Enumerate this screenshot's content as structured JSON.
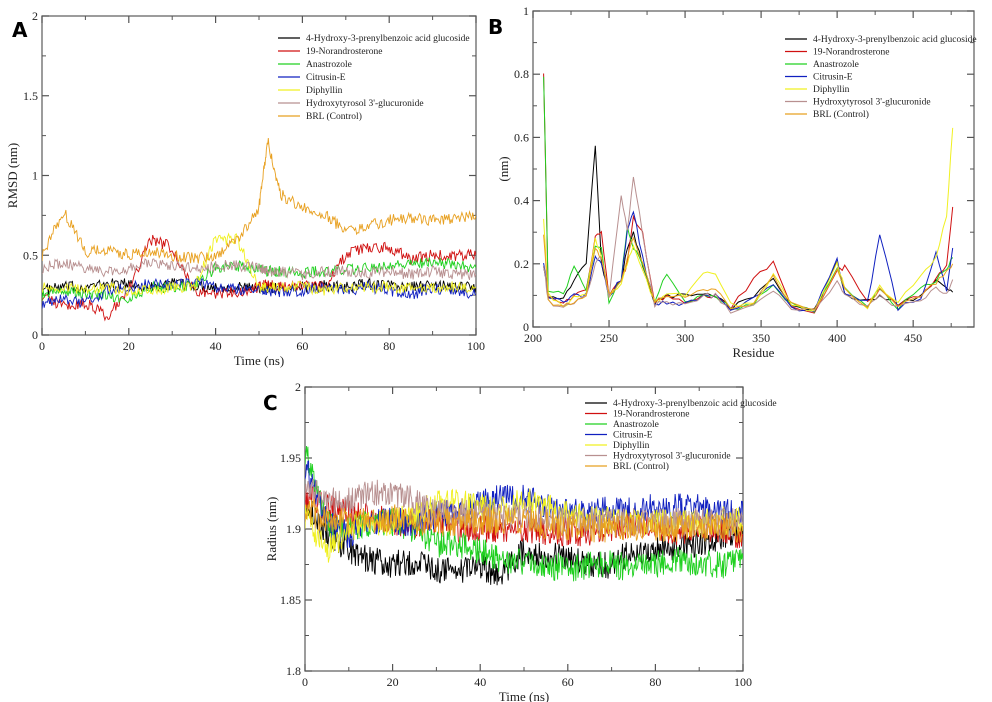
{
  "legend_labels": [
    "4-Hydroxy-3-prenylbenzoic acid glucoside",
    "19-Norandrosterone",
    "Anastrozole",
    "Citrusin-E",
    "Diphyllin",
    "Hydroxytyrosol 3'-glucuronide",
    "BRL (Control)"
  ],
  "series_colors": [
    "#000000",
    "#d01010",
    "#20d020",
    "#1020c0",
    "#f0f020",
    "#b89090",
    "#e8a020"
  ],
  "chart_data": [
    {
      "panel": "A",
      "type": "line",
      "title": "",
      "xlabel": "Time (ns)",
      "ylabel": "RMSD (nm)",
      "xlim": [
        0,
        100
      ],
      "ylim": [
        0,
        2
      ],
      "xticks": [
        "0",
        "20",
        "40",
        "60",
        "80",
        "100"
      ],
      "yticks": [
        "0",
        "0.5",
        "1",
        "1.5",
        "2"
      ],
      "legend_position": "top-right",
      "x": [
        0,
        5,
        10,
        15,
        20,
        25,
        30,
        35,
        40,
        45,
        50,
        52,
        55,
        60,
        65,
        70,
        75,
        80,
        85,
        90,
        95,
        100
      ],
      "series": [
        {
          "name": "4-Hydroxy-3-prenylbenzoic acid glucoside",
          "values": [
            0.28,
            0.3,
            0.3,
            0.32,
            0.32,
            0.3,
            0.32,
            0.31,
            0.3,
            0.3,
            0.29,
            0.3,
            0.29,
            0.3,
            0.31,
            0.3,
            0.32,
            0.31,
            0.3,
            0.31,
            0.3,
            0.3
          ]
        },
        {
          "name": "19-Norandrosterone",
          "values": [
            0.25,
            0.18,
            0.2,
            0.12,
            0.28,
            0.6,
            0.55,
            0.28,
            0.26,
            0.27,
            0.3,
            0.32,
            0.3,
            0.31,
            0.3,
            0.5,
            0.55,
            0.55,
            0.48,
            0.5,
            0.5,
            0.5
          ]
        },
        {
          "name": "Anastrozole",
          "values": [
            0.25,
            0.27,
            0.26,
            0.25,
            0.22,
            0.3,
            0.3,
            0.32,
            0.42,
            0.43,
            0.42,
            0.4,
            0.4,
            0.39,
            0.4,
            0.41,
            0.42,
            0.43,
            0.45,
            0.45,
            0.44,
            0.42
          ]
        },
        {
          "name": "Citrusin-E",
          "values": [
            0.2,
            0.22,
            0.2,
            0.28,
            0.3,
            0.32,
            0.31,
            0.33,
            0.3,
            0.29,
            0.28,
            0.28,
            0.27,
            0.28,
            0.3,
            0.28,
            0.3,
            0.28,
            0.25,
            0.3,
            0.27,
            0.25
          ]
        },
        {
          "name": "Diphyllin",
          "values": [
            0.3,
            0.3,
            0.28,
            0.3,
            0.27,
            0.28,
            0.3,
            0.3,
            0.6,
            0.6,
            0.3,
            0.3,
            0.3,
            0.3,
            0.28,
            0.3,
            0.3,
            0.3,
            0.29,
            0.3,
            0.3,
            0.3
          ]
        },
        {
          "name": "Hydroxytyrosol 3'-glucuronide",
          "values": [
            0.42,
            0.45,
            0.42,
            0.4,
            0.42,
            0.45,
            0.43,
            0.42,
            0.43,
            0.44,
            0.42,
            0.4,
            0.4,
            0.38,
            0.4,
            0.4,
            0.39,
            0.4,
            0.38,
            0.4,
            0.38,
            0.38
          ]
        },
        {
          "name": "BRL (Control)",
          "values": [
            0.5,
            0.78,
            0.52,
            0.53,
            0.5,
            0.52,
            0.5,
            0.48,
            0.5,
            0.6,
            0.8,
            1.22,
            0.88,
            0.8,
            0.76,
            0.65,
            0.68,
            0.72,
            0.73,
            0.72,
            0.73,
            0.75
          ]
        }
      ]
    },
    {
      "panel": "B",
      "type": "line",
      "title": "",
      "xlabel": "Residue",
      "ylabel": "(nm)",
      "xlim": [
        200,
        490
      ],
      "ylim": [
        0,
        1
      ],
      "xticks": [
        "200",
        "250",
        "300",
        "350",
        "400",
        "450"
      ],
      "yticks": [
        "0",
        "0.2",
        "0.4",
        "0.6",
        "0.8",
        "1"
      ],
      "legend_position": "top-right",
      "x": [
        207,
        210,
        220,
        227,
        235,
        241,
        245,
        250,
        258,
        262,
        266,
        272,
        280,
        288,
        300,
        312,
        320,
        330,
        345,
        358,
        370,
        385,
        400,
        405,
        420,
        428,
        440,
        455,
        465,
        472,
        476
      ],
      "series": [
        {
          "name": "4-Hydroxy-3-prenylbenzoic acid glucoside",
          "values": [
            0.2,
            0.1,
            0.09,
            0.15,
            0.2,
            0.58,
            0.2,
            0.1,
            0.15,
            0.25,
            0.3,
            0.2,
            0.08,
            0.1,
            0.1,
            0.1,
            0.1,
            0.06,
            0.1,
            0.15,
            0.07,
            0.05,
            0.2,
            0.1,
            0.08,
            0.1,
            0.07,
            0.1,
            0.15,
            0.12,
            0.11
          ]
        },
        {
          "name": "19-Norandrosterone",
          "values": [
            0.81,
            0.1,
            0.08,
            0.1,
            0.12,
            0.28,
            0.3,
            0.1,
            0.15,
            0.2,
            0.35,
            0.3,
            0.08,
            0.1,
            0.08,
            0.1,
            0.1,
            0.06,
            0.15,
            0.21,
            0.07,
            0.05,
            0.18,
            0.19,
            0.08,
            0.12,
            0.07,
            0.1,
            0.15,
            0.2,
            0.38
          ]
        },
        {
          "name": "Anastrozole",
          "values": [
            0.8,
            0.12,
            0.1,
            0.19,
            0.12,
            0.25,
            0.25,
            0.08,
            0.15,
            0.32,
            0.25,
            0.2,
            0.08,
            0.17,
            0.08,
            0.1,
            0.1,
            0.06,
            0.07,
            0.14,
            0.07,
            0.05,
            0.18,
            0.12,
            0.07,
            0.12,
            0.06,
            0.12,
            0.15,
            0.18,
            0.22
          ]
        },
        {
          "name": "Citrusin-E",
          "values": [
            0.21,
            0.1,
            0.08,
            0.1,
            0.1,
            0.22,
            0.2,
            0.1,
            0.15,
            0.3,
            0.37,
            0.22,
            0.07,
            0.08,
            0.07,
            0.1,
            0.1,
            0.05,
            0.1,
            0.13,
            0.06,
            0.05,
            0.22,
            0.1,
            0.08,
            0.29,
            0.06,
            0.09,
            0.24,
            0.12,
            0.25
          ]
        },
        {
          "name": "Diphyllin",
          "values": [
            0.35,
            0.1,
            0.07,
            0.09,
            0.1,
            0.28,
            0.22,
            0.1,
            0.14,
            0.2,
            0.25,
            0.18,
            0.08,
            0.1,
            0.1,
            0.17,
            0.17,
            0.07,
            0.07,
            0.17,
            0.07,
            0.05,
            0.2,
            0.12,
            0.06,
            0.13,
            0.07,
            0.17,
            0.22,
            0.35,
            0.63
          ]
        },
        {
          "name": "Hydroxytyrosol 3'-glucuronide",
          "values": [
            0.2,
            0.08,
            0.06,
            0.08,
            0.1,
            0.2,
            0.22,
            0.1,
            0.42,
            0.3,
            0.47,
            0.3,
            0.07,
            0.08,
            0.07,
            0.1,
            0.1,
            0.05,
            0.07,
            0.12,
            0.06,
            0.05,
            0.15,
            0.1,
            0.06,
            0.1,
            0.06,
            0.08,
            0.12,
            0.1,
            0.15
          ]
        },
        {
          "name": "BRL (Control)",
          "values": [
            0.3,
            0.08,
            0.07,
            0.08,
            0.1,
            0.25,
            0.22,
            0.1,
            0.15,
            0.22,
            0.28,
            0.2,
            0.08,
            0.1,
            0.1,
            0.12,
            0.12,
            0.06,
            0.08,
            0.16,
            0.07,
            0.05,
            0.18,
            0.12,
            0.06,
            0.12,
            0.06,
            0.1,
            0.14,
            0.18,
            0.2
          ]
        }
      ]
    },
    {
      "panel": "C",
      "type": "line",
      "title": "",
      "xlabel": "Time (ns)",
      "ylabel": "Radius (nm)",
      "xlim": [
        0,
        100
      ],
      "ylim": [
        1.8,
        2
      ],
      "xticks": [
        "0",
        "20",
        "40",
        "60",
        "80",
        "100"
      ],
      "yticks": [
        "1.8",
        "1.85",
        "1.9",
        "1.95",
        "2"
      ],
      "legend_position": "top-right",
      "x": [
        0,
        5,
        10,
        15,
        20,
        25,
        30,
        35,
        40,
        44,
        50,
        55,
        60,
        65,
        70,
        75,
        80,
        85,
        90,
        95,
        100
      ],
      "series": [
        {
          "name": "4-Hydroxy-3-prenylbenzoic acid glucoside",
          "values": [
            1.92,
            1.895,
            1.885,
            1.878,
            1.875,
            1.877,
            1.872,
            1.87,
            1.875,
            1.865,
            1.885,
            1.882,
            1.88,
            1.875,
            1.875,
            1.885,
            1.885,
            1.888,
            1.89,
            1.895,
            1.9
          ]
        },
        {
          "name": "19-Norandrosterone",
          "values": [
            1.925,
            1.915,
            1.91,
            1.908,
            1.905,
            1.903,
            1.905,
            1.9,
            1.9,
            1.898,
            1.9,
            1.898,
            1.898,
            1.897,
            1.9,
            1.905,
            1.9,
            1.898,
            1.9,
            1.9,
            1.895
          ]
        },
        {
          "name": "Anastrozole",
          "values": [
            1.955,
            1.905,
            1.9,
            1.905,
            1.905,
            1.9,
            1.89,
            1.888,
            1.885,
            1.88,
            1.875,
            1.875,
            1.872,
            1.875,
            1.875,
            1.872,
            1.875,
            1.878,
            1.876,
            1.874,
            1.878
          ]
        },
        {
          "name": "Citrusin-E",
          "values": [
            1.945,
            1.905,
            1.895,
            1.905,
            1.905,
            1.905,
            1.91,
            1.912,
            1.918,
            1.922,
            1.922,
            1.915,
            1.912,
            1.913,
            1.913,
            1.915,
            1.915,
            1.915,
            1.915,
            1.912,
            1.91
          ]
        },
        {
          "name": "Diphyllin",
          "values": [
            1.91,
            1.885,
            1.9,
            1.905,
            1.905,
            1.91,
            1.918,
            1.918,
            1.915,
            1.912,
            1.92,
            1.915,
            1.91,
            1.908,
            1.906,
            1.905,
            1.905,
            1.905,
            1.905,
            1.906,
            1.905
          ]
        },
        {
          "name": "Hydroxytyrosol 3'-glucuronide",
          "values": [
            1.93,
            1.92,
            1.92,
            1.925,
            1.925,
            1.92,
            1.91,
            1.912,
            1.91,
            1.908,
            1.91,
            1.908,
            1.906,
            1.905,
            1.905,
            1.905,
            1.905,
            1.905,
            1.905,
            1.905,
            1.905
          ]
        },
        {
          "name": "BRL (Control)",
          "values": [
            1.915,
            1.905,
            1.905,
            1.905,
            1.908,
            1.905,
            1.905,
            1.905,
            1.905,
            1.905,
            1.905,
            1.903,
            1.902,
            1.9,
            1.9,
            1.902,
            1.9,
            1.9,
            1.9,
            1.902,
            1.9
          ]
        }
      ]
    }
  ],
  "panels": {
    "A": {
      "letter": "A"
    },
    "B": {
      "letter": "B"
    },
    "C": {
      "letter": "C"
    }
  }
}
